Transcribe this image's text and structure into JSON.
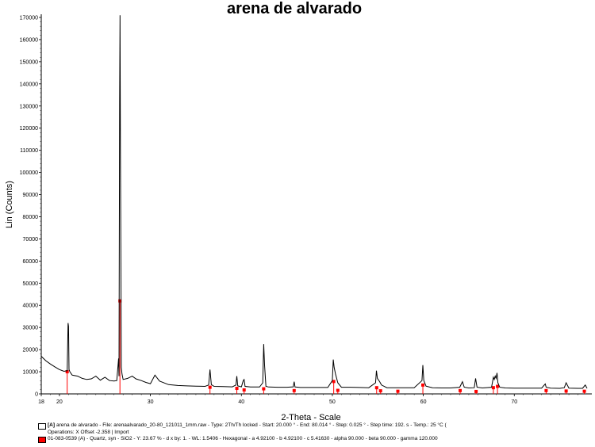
{
  "chart_data": {
    "type": "line",
    "title": "arena de alvarado",
    "xlabel": "2-Theta - Scale",
    "ylabel": "Lin (Counts)",
    "xlim": [
      18,
      78
    ],
    "ylim": [
      0,
      170000
    ],
    "x_ticks": [
      {
        "value": 18,
        "label": "18"
      },
      {
        "value": 20,
        "label": "20"
      },
      {
        "value": 30,
        "label": "30"
      },
      {
        "value": 40,
        "label": "40"
      },
      {
        "value": 50,
        "label": "50"
      },
      {
        "value": 60,
        "label": "60"
      },
      {
        "value": 70,
        "label": "70"
      }
    ],
    "y_ticks": [
      {
        "value": 0,
        "label": "0"
      },
      {
        "value": 10000,
        "label": "10000"
      },
      {
        "value": 20000,
        "label": "20000"
      },
      {
        "value": 30000,
        "label": "30000"
      },
      {
        "value": 40000,
        "label": "40000"
      },
      {
        "value": 50000,
        "label": "50000"
      },
      {
        "value": 60000,
        "label": "60000"
      },
      {
        "value": 70000,
        "label": "70000"
      },
      {
        "value": 80000,
        "label": "80000"
      },
      {
        "value": 90000,
        "label": "90000"
      },
      {
        "value": 100000,
        "label": "100000"
      },
      {
        "value": 110000,
        "label": "110000"
      },
      {
        "value": 120000,
        "label": "120000"
      },
      {
        "value": 130000,
        "label": "130000"
      },
      {
        "value": 140000,
        "label": "140000"
      },
      {
        "value": 150000,
        "label": "150000"
      },
      {
        "value": 160000,
        "label": "160000"
      },
      {
        "value": 170000,
        "label": "170000"
      }
    ],
    "pattern_series": {
      "x": [
        18.0,
        18.5,
        19.0,
        19.5,
        20.0,
        20.5,
        20.85,
        20.95,
        21.0,
        21.05,
        21.15,
        21.4,
        22.0,
        22.5,
        23.0,
        23.5,
        24.0,
        24.5,
        25.0,
        25.5,
        26.0,
        26.3,
        26.5,
        26.55,
        26.62,
        26.66,
        26.7,
        26.75,
        26.8,
        26.88,
        27.0,
        27.5,
        28.0,
        28.4,
        29.0,
        29.5,
        30.0,
        30.5,
        31.0,
        32.0,
        33.0,
        34.0,
        35.0,
        36.0,
        36.4,
        36.55,
        36.7,
        37.0,
        38.0,
        39.0,
        39.4,
        39.5,
        39.6,
        40.0,
        40.2,
        40.3,
        40.4,
        41.0,
        42.0,
        42.35,
        42.45,
        42.55,
        42.7,
        43.0,
        44.0,
        45.0,
        45.7,
        45.8,
        45.9,
        46.5,
        48.0,
        49.5,
        50.0,
        50.1,
        50.2,
        50.35,
        50.6,
        51.0,
        52.0,
        53.0,
        54.0,
        54.75,
        54.85,
        54.95,
        55.2,
        55.4,
        56.0,
        57.0,
        58.0,
        59.0,
        59.85,
        59.95,
        60.05,
        60.3,
        61.0,
        62.0,
        63.0,
        64.0,
        64.3,
        64.5,
        65.0,
        65.6,
        65.75,
        65.9,
        66.5,
        67.5,
        67.7,
        67.8,
        67.9,
        68.0,
        68.1,
        68.2,
        68.4,
        69.0,
        70.0,
        71.0,
        72.0,
        73.0,
        73.4,
        73.5,
        74.0,
        75.0,
        75.5,
        75.7,
        76.0,
        77.0,
        77.5,
        77.8,
        78.0
      ],
      "y": [
        17000,
        15000,
        13500,
        12200,
        11000,
        10200,
        10500,
        32000,
        30500,
        11000,
        10000,
        8500,
        8000,
        7000,
        6500,
        6800,
        8000,
        6200,
        7500,
        6000,
        5800,
        6000,
        16000,
        8000,
        132000,
        171000,
        110000,
        68000,
        12000,
        9000,
        6500,
        7000,
        8000,
        6800,
        6000,
        5200,
        4600,
        8500,
        5800,
        4200,
        3800,
        3600,
        3500,
        3400,
        4000,
        11000,
        4200,
        3400,
        3300,
        3200,
        4000,
        8000,
        3600,
        3200,
        6000,
        6500,
        3400,
        3100,
        3100,
        5000,
        22500,
        13000,
        3400,
        3100,
        3000,
        3000,
        3200,
        5500,
        3100,
        2900,
        2900,
        2900,
        6000,
        15500,
        12000,
        9000,
        5000,
        3000,
        3000,
        2900,
        2800,
        5000,
        10500,
        7000,
        5500,
        4000,
        2800,
        2800,
        2800,
        2800,
        6000,
        13000,
        6000,
        3500,
        2800,
        2700,
        2700,
        3000,
        5500,
        3000,
        2700,
        2800,
        7000,
        3000,
        2700,
        3000,
        7500,
        6500,
        8000,
        7000,
        9500,
        5000,
        3000,
        2700,
        2600,
        2600,
        2600,
        2600,
        4500,
        3000,
        2600,
        2500,
        2800,
        5000,
        2600,
        2500,
        2500,
        4000,
        2500
      ]
    },
    "reference_peaks": {
      "x": [
        20.85,
        26.65,
        36.55,
        39.5,
        40.3,
        42.45,
        45.8,
        50.15,
        50.6,
        54.87,
        55.3,
        57.2,
        59.95,
        64.05,
        65.8,
        67.7,
        68.15,
        73.5,
        75.7,
        77.7
      ],
      "y": [
        10000,
        42000,
        3000,
        2500,
        1800,
        2300,
        1500,
        5600,
        1600,
        2800,
        1400,
        1200,
        4000,
        1500,
        1100,
        2800,
        3400,
        1500,
        1300,
        1200
      ]
    }
  },
  "legend": {
    "line1_prefix": "[A]",
    "line1": "arena de alvarado - File: arenaalvarado_20-80_121011_1mm.raw - Type: 2Th/Th locked - Start: 20.000 ° - End: 80.014 ° - Step: 0.025 ° - Step time: 192. s - Temp.: 25 °C (",
    "line2": "Operations: X Offset -2.358 | Import",
    "line3": "01-083-0539 (A) - Quartz, syn - SiO2 - Y: 23.67 % - d x by: 1. - WL: 1.5406 - Hexagonal - a 4.92100 - b 4.92100 - c 5.41630 - alpha 90.000 - beta 90.000 - gamma 120.000"
  },
  "colors": {
    "pattern": "#000000",
    "reference": "#ff0000"
  }
}
